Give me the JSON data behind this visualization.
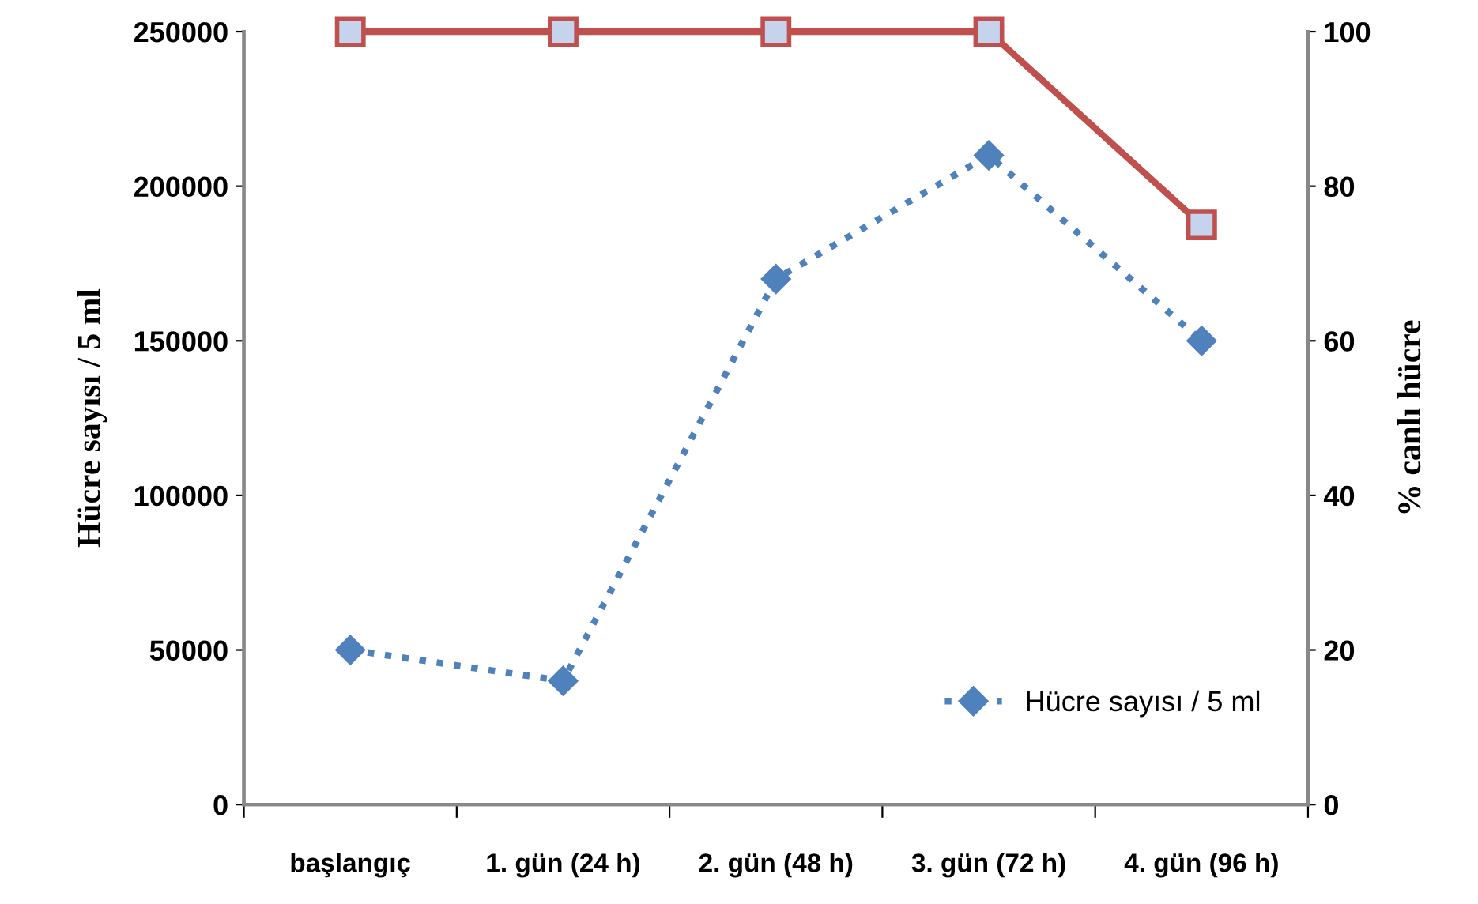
{
  "chart_data": {
    "type": "line",
    "categories": [
      "başlangıç",
      "1. gün (24 h)",
      "2. gün (48 h)",
      "3. gün (72 h)",
      "4. gün (96 h)"
    ],
    "ylabel": "Hücre sayısı / 5 ml",
    "y2label": "% canlı hücre",
    "ylim": [
      0,
      250000
    ],
    "yticks": [
      0,
      50000,
      100000,
      150000,
      200000,
      250000
    ],
    "y2lim": [
      0,
      100
    ],
    "y2ticks": [
      0,
      20,
      40,
      60,
      80,
      100
    ],
    "grid": false,
    "legend": "bottom right",
    "series": [
      {
        "name": "Hücre sayısı / 5 ml",
        "color": "#4f81bd",
        "marker": "diamond",
        "line_style": "dotted",
        "values": [
          50000,
          40000,
          170000,
          210000,
          150000
        ]
      },
      {
        "color": "#c0504d",
        "marker": "square",
        "line_style": "solid",
        "axis": "y2",
        "values": [
          100,
          100,
          100,
          100,
          75
        ]
      }
    ]
  }
}
